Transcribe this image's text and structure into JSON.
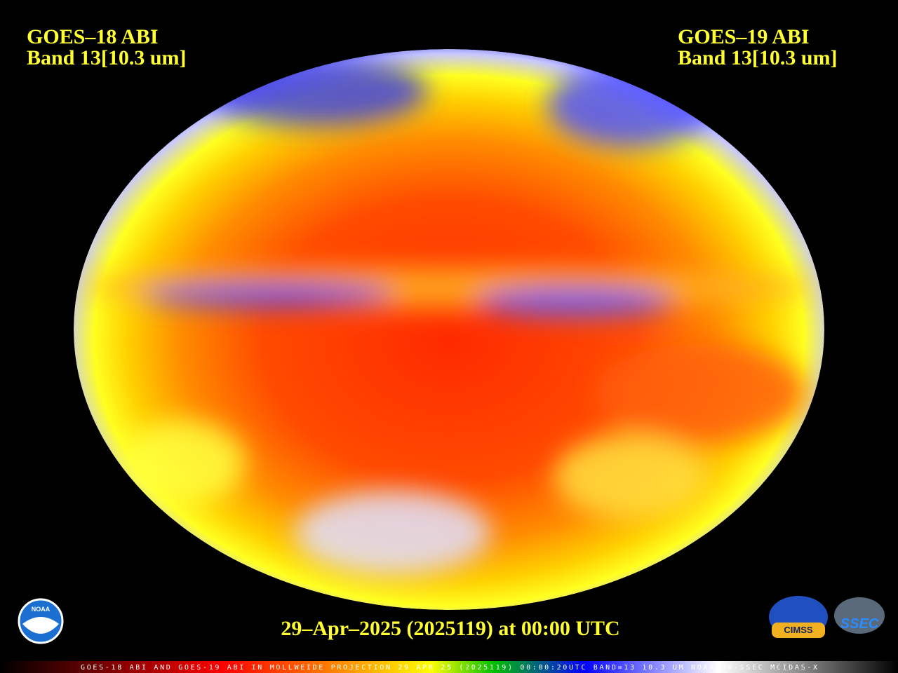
{
  "left_label": {
    "line1": "GOES–18 ABI",
    "line2": "Band 13[10.3 um]"
  },
  "right_label": {
    "line1": "GOES–19 ABI",
    "line2": "Band 13[10.3 um]"
  },
  "timestamp": "29–Apr–2025 (2025119) at 00:00 UTC",
  "footer": "GOES-18 ABI AND GOES-19 ABI IN MOLLWEIDE PROJECTION 29 APR 25 (2025119) 00:00:20UTC BAND=13 10.3 UM NOAA UW-SSEC MCIDAS-X",
  "logos": {
    "noaa": "NOAA",
    "cimss": "CIMSS",
    "ssec": "SSEC"
  }
}
